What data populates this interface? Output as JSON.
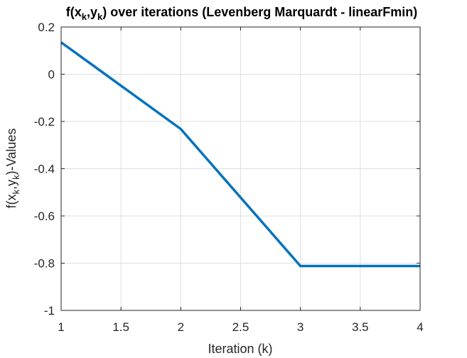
{
  "chart_data": {
    "type": "line",
    "title": {
      "prefix": "f(x",
      "sub1": "k",
      "mid": ",y",
      "sub2": "k",
      "suffix": ") over iterations (Levenberg Marquardt - linearFmin)"
    },
    "xlabel": "Iteration (k)",
    "ylabel": {
      "prefix": "f(x",
      "sub1": "k",
      "mid": ",y",
      "sub2": "k",
      "suffix": ")-Values"
    },
    "xlim": [
      1,
      4
    ],
    "ylim": [
      -1,
      0.2
    ],
    "x_ticks": [
      1,
      1.5,
      2,
      2.5,
      3,
      3.5,
      4
    ],
    "x_tick_labels": [
      "1",
      "1.5",
      "2",
      "2.5",
      "3",
      "3.5",
      "4"
    ],
    "y_ticks": [
      -1,
      -0.8,
      -0.6,
      -0.4,
      -0.2,
      0,
      0.2
    ],
    "y_tick_labels": [
      "-1",
      "-0.8",
      "-0.6",
      "-0.4",
      "-0.2",
      "0",
      "0.2"
    ],
    "grid": true,
    "series": [
      {
        "x": [
          1,
          2,
          3,
          4
        ],
        "y": [
          0.135,
          -0.232,
          -0.812,
          -0.812
        ],
        "color": "#0072BD"
      }
    ]
  }
}
